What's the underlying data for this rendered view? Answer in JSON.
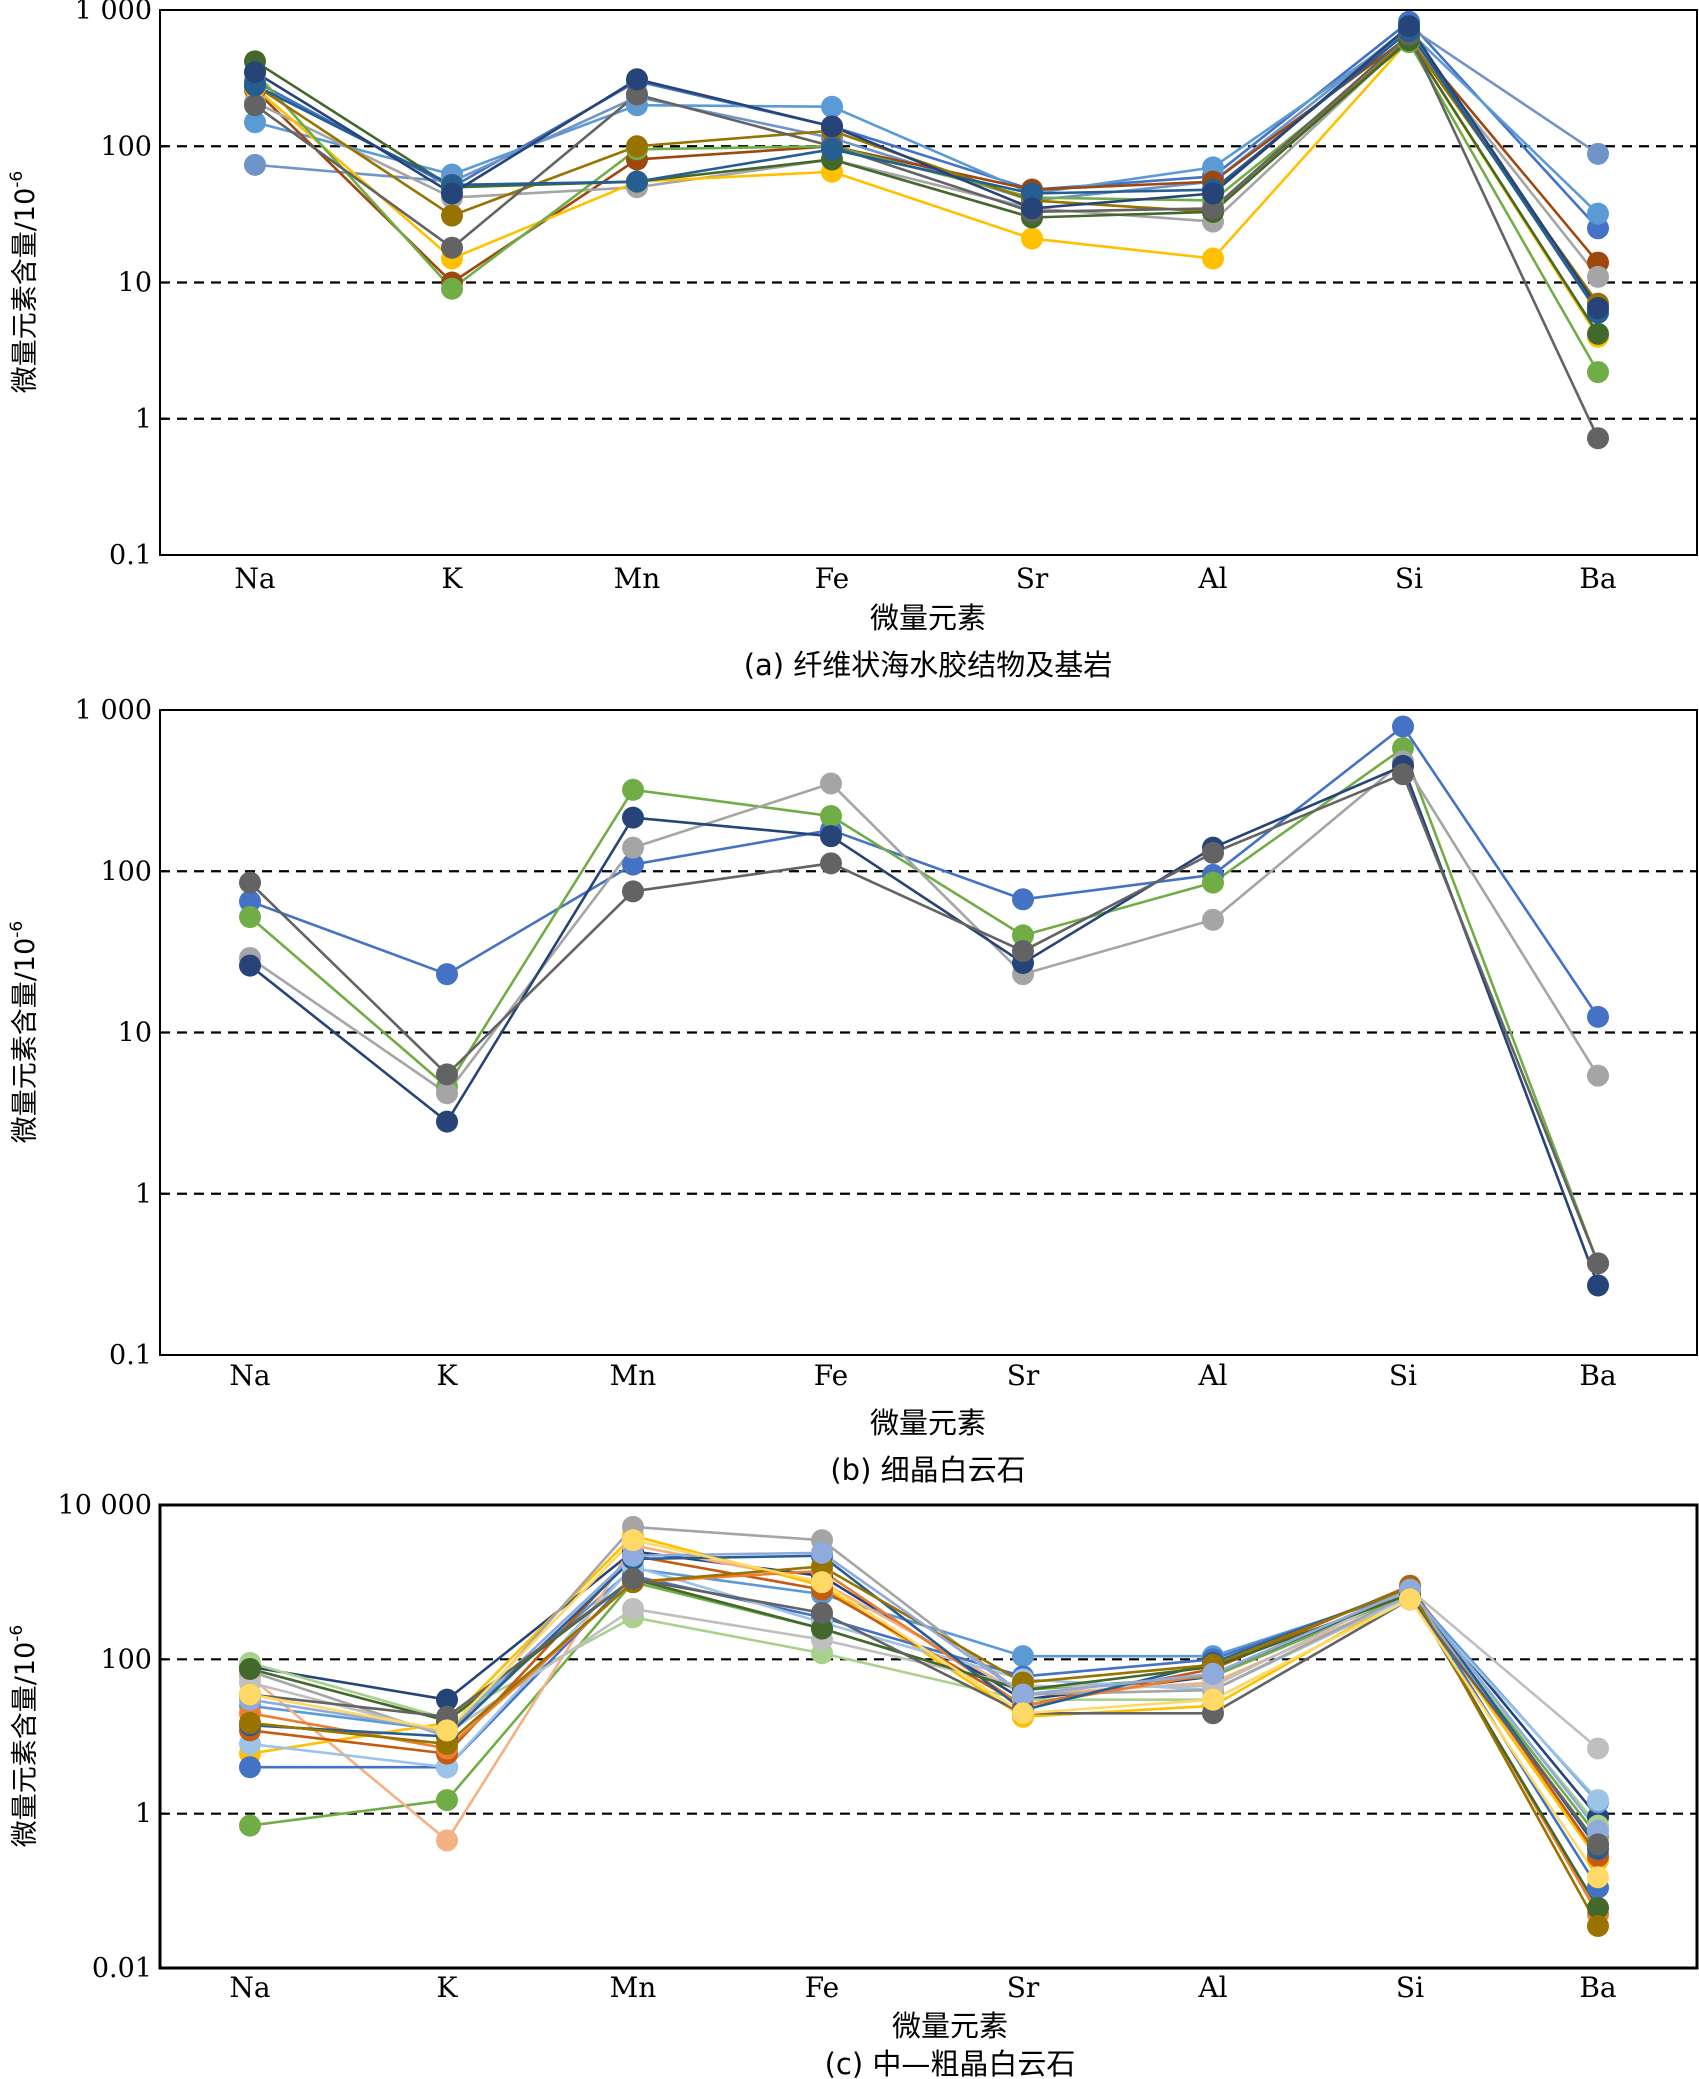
{
  "chart_data": [
    {
      "type": "line",
      "title": "(a) 纤维状海水胶结物及基岩",
      "xlabel": "微量元素",
      "ylabel": "微量元素含量/10",
      "ylabel_sup": "-6",
      "yscale": "log",
      "ylim": [
        0.1,
        1000
      ],
      "ytick_labels": [
        "0.1",
        "1",
        "10",
        "100",
        "1 000"
      ],
      "gridlines": "dashed at 1, 10, 100",
      "categories": [
        "Na",
        "K",
        "Mn",
        "Fe",
        "Sr",
        "Al",
        "Si",
        "Ba"
      ],
      "series": [
        {
          "color": "#4472c4",
          "values": [
            300,
            50,
            300,
            140,
            48,
            60,
            820,
            25
          ]
        },
        {
          "color": "#5b9bd5",
          "values": [
            150,
            62,
            200,
            195,
            45,
            70,
            700,
            32
          ]
        },
        {
          "color": "#6f94c8",
          "values": [
            73,
            55,
            230,
            115,
            40,
            55,
            750,
            88
          ]
        },
        {
          "color": "#9e480e",
          "values": [
            260,
            10,
            80,
            100,
            48,
            55,
            640,
            14
          ]
        },
        {
          "color": "#a5a5a5",
          "values": [
            210,
            42,
            50,
            80,
            35,
            28,
            620,
            11
          ]
        },
        {
          "color": "#ffc000",
          "values": [
            270,
            15,
            55,
            65,
            21,
            15,
            600,
            4
          ]
        },
        {
          "color": "#70ad47",
          "values": [
            350,
            9,
            95,
            100,
            42,
            40,
            580,
            2.2
          ]
        },
        {
          "color": "#997300",
          "values": [
            280,
            31,
            100,
            130,
            40,
            33,
            620,
            7
          ]
        },
        {
          "color": "#43682b",
          "values": [
            420,
            50,
            55,
            80,
            30,
            33,
            600,
            4.2
          ]
        },
        {
          "color": "#636363",
          "values": [
            200,
            18,
            240,
            100,
            33,
            35,
            660,
            0.72
          ]
        },
        {
          "color": "#255e91",
          "values": [
            280,
            52,
            55,
            95,
            45,
            48,
            700,
            6
          ]
        },
        {
          "color": "#264478",
          "values": [
            350,
            45,
            310,
            140,
            35,
            45,
            760,
            6.5
          ]
        }
      ]
    },
    {
      "type": "line",
      "title": "(b) 细晶白云石",
      "xlabel": "微量元素",
      "ylabel": "微量元素含量/10",
      "ylabel_sup": "-6",
      "yscale": "log",
      "ylim": [
        0.1,
        1000
      ],
      "ytick_labels": [
        "0.1",
        "1",
        "10",
        "100",
        "1 000"
      ],
      "gridlines": "dashed at 1, 10, 100",
      "categories": [
        "Na",
        "K",
        "Mn",
        "Fe",
        "Sr",
        "Al",
        "Si",
        "Ba"
      ],
      "series": [
        {
          "color": "#4472c4",
          "values": [
            65,
            23,
            110,
            180,
            67,
            95,
            790,
            12.5
          ]
        },
        {
          "color": "#70ad47",
          "values": [
            52,
            4.6,
            320,
            220,
            40,
            85,
            580,
            0.37
          ]
        },
        {
          "color": "#a5a5a5",
          "values": [
            29,
            4.2,
            140,
            350,
            23,
            50,
            480,
            5.4
          ]
        },
        {
          "color": "#264478",
          "values": [
            26,
            2.8,
            215,
            165,
            27,
            140,
            450,
            0.27
          ]
        },
        {
          "color": "#636363",
          "values": [
            85,
            5.5,
            75,
            112,
            32,
            130,
            400,
            0.37
          ]
        }
      ]
    },
    {
      "type": "line",
      "title": "(c) 中—粗晶白云石",
      "xlabel": "微量元素",
      "ylabel": "微量元素含量/10",
      "ylabel_sup": "-6",
      "yscale": "log",
      "ylim": [
        0.01,
        10000
      ],
      "ytick_labels": [
        "0.01",
        "1",
        "100",
        "10 000"
      ],
      "gridlines": "dashed at 1, 100",
      "categories": [
        "Na",
        "K",
        "Mn",
        "Fe",
        "Sr",
        "Al",
        "Si",
        "Ba"
      ],
      "series": [
        {
          "color": "#264478",
          "values": [
            80,
            30,
            2500,
            1200,
            30,
            60,
            800,
            0.9
          ]
        },
        {
          "color": "#5b9bd5",
          "values": [
            25,
            12,
            1500,
            700,
            110,
            110,
            750,
            1.4
          ]
        },
        {
          "color": "#70ad47",
          "values": [
            0.7,
            1.5,
            1000,
            250,
            40,
            60,
            700,
            0.5
          ]
        },
        {
          "color": "#f4b183",
          "values": [
            60,
            0.45,
            3000,
            1000,
            35,
            50,
            650,
            0.3
          ]
        },
        {
          "color": "#a9d18e",
          "values": [
            90,
            17,
            350,
            120,
            30,
            30,
            600,
            0.7
          ]
        },
        {
          "color": "#ffc000",
          "values": [
            6,
            15,
            4000,
            900,
            18,
            25,
            700,
            0.25
          ]
        },
        {
          "color": "#4472c4",
          "values": [
            4,
            4,
            1200,
            350,
            60,
            100,
            800,
            0.11
          ]
        },
        {
          "color": "#9dc3e6",
          "values": [
            8,
            4,
            1600,
            300,
            55,
            40,
            650,
            1.5
          ]
        },
        {
          "color": "#c55a11",
          "values": [
            12,
            6,
            2200,
            800,
            25,
            75,
            900,
            0.28
          ]
        },
        {
          "color": "#a5a5a5",
          "values": [
            70,
            10,
            5200,
            3500,
            35,
            40,
            700,
            0.4
          ]
        },
        {
          "color": "#bfbfbf",
          "values": [
            50,
            11,
            450,
            180,
            45,
            45,
            800,
            7
          ]
        },
        {
          "color": "#ed7d31",
          "values": [
            20,
            7,
            1000,
            1400,
            25,
            65,
            800,
            0.05
          ]
        },
        {
          "color": "#255e91",
          "values": [
            14,
            10,
            2000,
            2200,
            22,
            90,
            850,
            0.35
          ]
        },
        {
          "color": "#43682b",
          "values": [
            75,
            16,
            1100,
            250,
            40,
            80,
            700,
            0.06
          ]
        },
        {
          "color": "#997300",
          "values": [
            15,
            8,
            1000,
            1600,
            50,
            85,
            850,
            0.035
          ]
        },
        {
          "color": "#8faadc",
          "values": [
            30,
            12,
            2200,
            2400,
            35,
            65,
            800,
            0.6
          ]
        },
        {
          "color": "#636363",
          "values": [
            35,
            18,
            1100,
            400,
            20,
            20,
            600,
            0.4
          ]
        },
        {
          "color": "#ffd966",
          "values": [
            35,
            12,
            3500,
            1000,
            20,
            30,
            600,
            0.15
          ]
        }
      ]
    }
  ]
}
